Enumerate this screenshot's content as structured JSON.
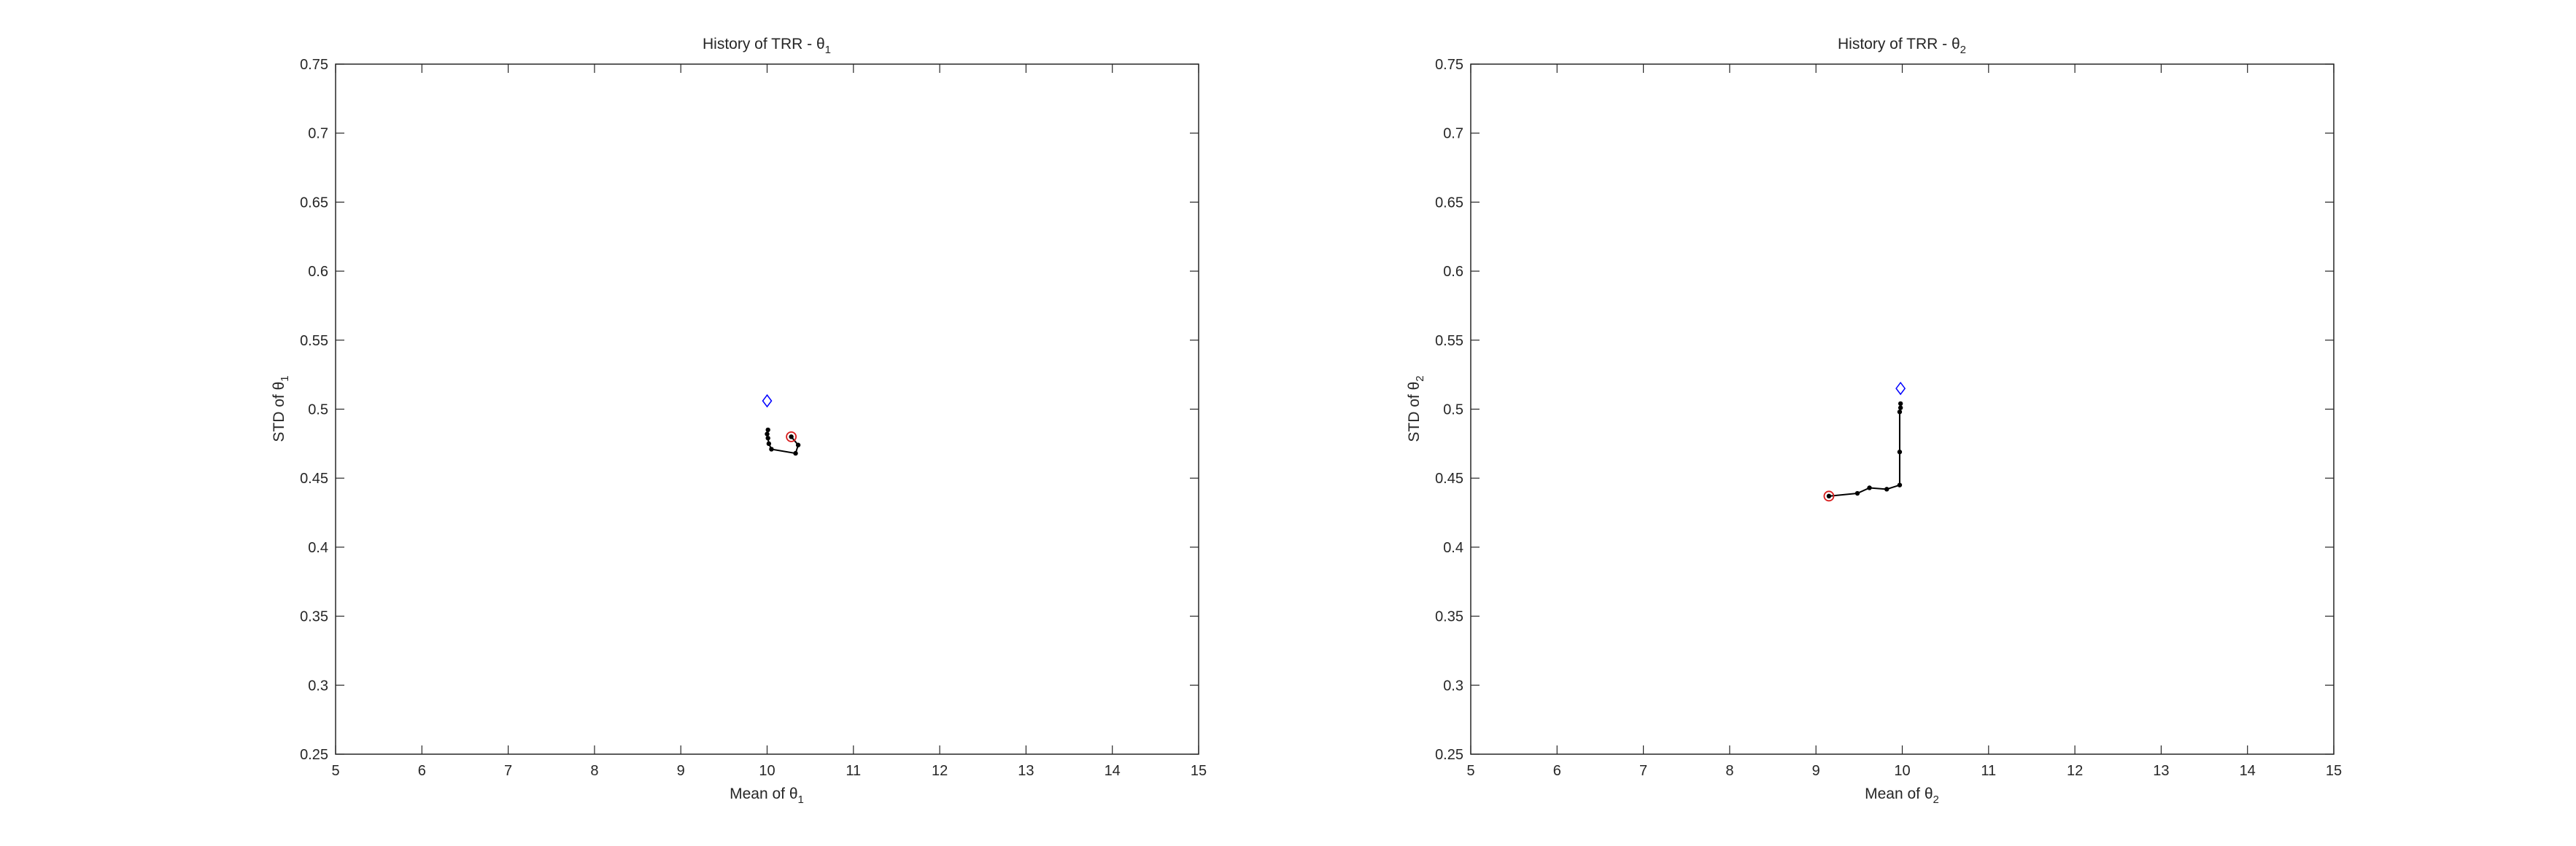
{
  "chart_data": [
    {
      "type": "scatter",
      "title": "History of TRR - θ",
      "title_sub": "1",
      "xlabel": "Mean of θ",
      "xlabel_sub": "1",
      "ylabel": "STD of θ",
      "ylabel_sub": "1",
      "xlim": [
        5,
        15
      ],
      "ylim": [
        0.25,
        0.75
      ],
      "xticks": [
        5,
        6,
        7,
        8,
        9,
        10,
        11,
        12,
        13,
        14,
        15
      ],
      "yticks": [
        0.25,
        0.3,
        0.35,
        0.4,
        0.45,
        0.5,
        0.55,
        0.6,
        0.65,
        0.7,
        0.75
      ],
      "xtick_labels": [
        "5",
        "6",
        "7",
        "8",
        "9",
        "10",
        "11",
        "12",
        "13",
        "14",
        "15"
      ],
      "ytick_labels": [
        "0.25",
        "0.3",
        "0.35",
        "0.4",
        "0.45",
        "0.5",
        "0.55",
        "0.6",
        "0.65",
        "0.7",
        "0.75"
      ],
      "grid": false,
      "series": [
        {
          "marker": "path",
          "color": "#000000",
          "x": [
            10.28,
            10.36,
            10.33,
            10.05,
            10.02,
            10.01,
            10.0,
            10.01
          ],
          "y": [
            0.48,
            0.474,
            0.468,
            0.471,
            0.475,
            0.479,
            0.482,
            0.485
          ]
        },
        {
          "marker": "circle",
          "color": "#d81b1b",
          "x": [
            10.28
          ],
          "y": [
            0.48
          ]
        },
        {
          "marker": "diamond",
          "color": "#0000ff",
          "x": [
            10.0
          ],
          "y": [
            0.506
          ]
        }
      ]
    },
    {
      "type": "scatter",
      "title": "History of TRR - θ",
      "title_sub": "2",
      "xlabel": "Mean of θ",
      "xlabel_sub": "2",
      "ylabel": "STD of θ",
      "ylabel_sub": "2",
      "xlim": [
        5,
        15
      ],
      "ylim": [
        0.25,
        0.75
      ],
      "xticks": [
        5,
        6,
        7,
        8,
        9,
        10,
        11,
        12,
        13,
        14,
        15
      ],
      "yticks": [
        0.25,
        0.3,
        0.35,
        0.4,
        0.45,
        0.5,
        0.55,
        0.6,
        0.65,
        0.7,
        0.75
      ],
      "xtick_labels": [
        "5",
        "6",
        "7",
        "8",
        "9",
        "10",
        "11",
        "12",
        "13",
        "14",
        "15"
      ],
      "ytick_labels": [
        "0.25",
        "0.3",
        "0.35",
        "0.4",
        "0.45",
        "0.5",
        "0.55",
        "0.6",
        "0.65",
        "0.7",
        "0.75"
      ],
      "grid": false,
      "series": [
        {
          "marker": "path",
          "color": "#000000",
          "x": [
            9.15,
            9.48,
            9.62,
            9.82,
            9.97,
            9.97,
            9.97,
            9.98,
            9.98
          ],
          "y": [
            0.437,
            0.439,
            0.443,
            0.442,
            0.445,
            0.469,
            0.498,
            0.501,
            0.504
          ]
        },
        {
          "marker": "circle",
          "color": "#d81b1b",
          "x": [
            9.15
          ],
          "y": [
            0.437
          ]
        },
        {
          "marker": "diamond",
          "color": "#0000ff",
          "x": [
            9.98
          ],
          "y": [
            0.515
          ]
        }
      ]
    }
  ]
}
